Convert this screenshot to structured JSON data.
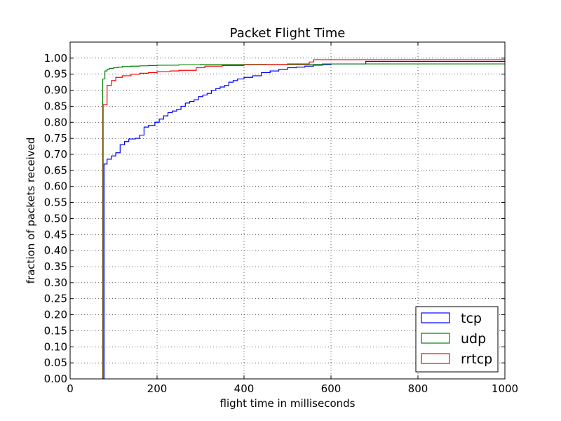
{
  "chart_data": {
    "type": "line",
    "title": "Packet Flight Time",
    "xlabel": "flight time in milliseconds",
    "ylabel": "fraction of packets received",
    "xlim": [
      0,
      1000
    ],
    "ylim": [
      0,
      1.05
    ],
    "xticks": [
      "0",
      "200",
      "400",
      "600",
      "800",
      "1000"
    ],
    "yticks": [
      "0.00",
      "0.05",
      "0.10",
      "0.15",
      "0.20",
      "0.25",
      "0.30",
      "0.35",
      "0.40",
      "0.45",
      "0.50",
      "0.55",
      "0.60",
      "0.65",
      "0.70",
      "0.75",
      "0.80",
      "0.85",
      "0.90",
      "0.95",
      "1.00"
    ],
    "grid": true,
    "legend_position": "lower-right",
    "series": [
      {
        "name": "tcp",
        "color": "#0000ff",
        "step": true,
        "x": [
          78,
          78,
          85,
          95,
          105,
          115,
          125,
          135,
          150,
          160,
          170,
          180,
          195,
          205,
          215,
          225,
          235,
          245,
          255,
          265,
          275,
          285,
          295,
          305,
          315,
          325,
          335,
          345,
          355,
          365,
          375,
          385,
          400,
          420,
          440,
          460,
          480,
          500,
          520,
          540,
          560,
          580,
          600,
          680,
          1000
        ],
        "y": [
          0.0,
          0.67,
          0.685,
          0.695,
          0.705,
          0.73,
          0.74,
          0.748,
          0.75,
          0.76,
          0.785,
          0.79,
          0.8,
          0.81,
          0.82,
          0.83,
          0.835,
          0.84,
          0.85,
          0.86,
          0.865,
          0.87,
          0.88,
          0.885,
          0.89,
          0.9,
          0.905,
          0.91,
          0.915,
          0.925,
          0.93,
          0.935,
          0.94,
          0.945,
          0.955,
          0.96,
          0.965,
          0.97,
          0.972,
          0.975,
          0.978,
          0.98,
          0.982,
          0.99,
          0.99
        ]
      },
      {
        "name": "udp",
        "color": "#008000",
        "step": true,
        "x": [
          75,
          75,
          80,
          85,
          90,
          100,
          110,
          120,
          140,
          160,
          180,
          200,
          250,
          300,
          400,
          500,
          580,
          1000
        ],
        "y": [
          0.0,
          0.935,
          0.96,
          0.965,
          0.968,
          0.97,
          0.972,
          0.974,
          0.975,
          0.976,
          0.977,
          0.978,
          0.979,
          0.98,
          0.98,
          0.98,
          0.982,
          0.982
        ]
      },
      {
        "name": "rrtcp",
        "color": "#ff0000",
        "step": true,
        "x": [
          76,
          76,
          85,
          95,
          105,
          120,
          140,
          160,
          180,
          200,
          230,
          250,
          290,
          310,
          350,
          400,
          450,
          500,
          550,
          560,
          1000
        ],
        "y": [
          0.0,
          0.855,
          0.915,
          0.93,
          0.94,
          0.945,
          0.95,
          0.953,
          0.955,
          0.958,
          0.96,
          0.962,
          0.97,
          0.975,
          0.977,
          0.979,
          0.98,
          0.982,
          0.988,
          0.995,
          0.995
        ]
      }
    ]
  }
}
